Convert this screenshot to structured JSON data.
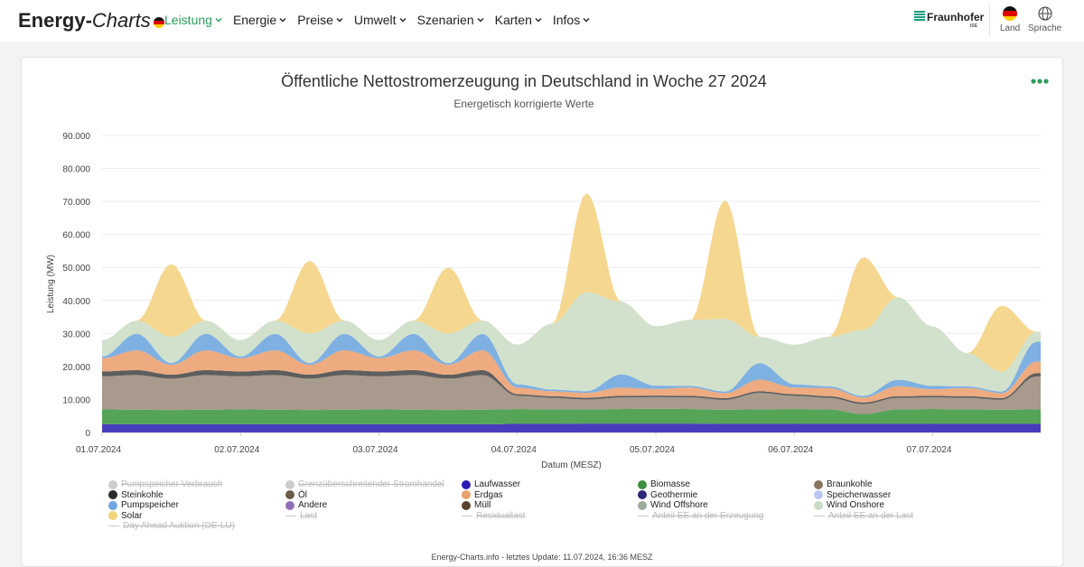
{
  "nav": {
    "brand_bold": "Energy-",
    "brand_italic": "Charts",
    "menu": [
      {
        "label": "Leistung",
        "active": true
      },
      {
        "label": "Energie",
        "active": false
      },
      {
        "label": "Preise",
        "active": false
      },
      {
        "label": "Umwelt",
        "active": false
      },
      {
        "label": "Szenarien",
        "active": false
      },
      {
        "label": "Karten",
        "active": false
      },
      {
        "label": "Infos",
        "active": false
      }
    ],
    "partner": "Fraunhofer",
    "partner_sub": "ISE",
    "land_label": "Land",
    "sprache_label": "Sprache"
  },
  "footer": "Energy-Charts.info - letztes Update: 11.07.2024, 16:36 MESZ",
  "chart_data": {
    "type": "area",
    "stacked": true,
    "title": "Öffentliche Nettostromerzeugung in Deutschland in Woche 27 2024",
    "subtitle": "Energetisch korrigierte Werte",
    "xlabel": "Datum (MESZ)",
    "ylabel": "Leistung (MW)",
    "ylim": [
      0,
      90000
    ],
    "yticks": [
      "0",
      "10.000",
      "20.000",
      "30.000",
      "40.000",
      "50.000",
      "60.000",
      "70.000",
      "80.000",
      "90.000"
    ],
    "xticks": [
      "01.07.2024",
      "02.07.2024",
      "03.07.2024",
      "04.07.2024",
      "05.07.2024",
      "06.07.2024",
      "07.07.2024"
    ],
    "grid": true,
    "x_days": [
      1.0,
      1.25,
      1.5,
      1.75,
      2.0,
      2.25,
      2.5,
      2.75,
      3.0,
      3.25,
      3.5,
      3.75,
      4.0,
      4.25,
      4.5,
      4.75,
      5.0,
      5.25,
      5.5,
      5.75,
      6.0,
      6.25,
      6.5,
      6.75,
      7.0,
      7.25,
      7.5,
      7.75
    ],
    "series": [
      {
        "name": "Laufwasser",
        "color": "#3f31b8",
        "values": [
          2500,
          2500,
          2500,
          2500,
          2500,
          2500,
          2500,
          2500,
          2500,
          2500,
          2500,
          2500,
          2600,
          2600,
          2700,
          2700,
          2700,
          2700,
          2600,
          2600,
          2600,
          2600,
          2600,
          2600,
          2600,
          2600,
          2600,
          2600
        ]
      },
      {
        "name": "Biomasse",
        "color": "#4d9f4f",
        "values": [
          4500,
          4400,
          4300,
          4400,
          4500,
          4400,
          4300,
          4400,
          4500,
          4400,
          4300,
          4400,
          4500,
          4400,
          4300,
          4400,
          4500,
          4400,
          4300,
          4400,
          4500,
          4400,
          3000,
          4400,
          4500,
          4400,
          4300,
          4400
        ]
      },
      {
        "name": "Braunkohle",
        "color": "#a39587",
        "values": [
          10000,
          10500,
          9500,
          10500,
          10000,
          10500,
          9500,
          10500,
          10000,
          10500,
          9500,
          10500,
          4000,
          3500,
          3000,
          3500,
          3500,
          3500,
          3000,
          5000,
          4000,
          3500,
          3000,
          3500,
          3500,
          3500,
          3000,
          10000
        ]
      },
      {
        "name": "Steinkohle",
        "color": "#555555",
        "values": [
          1500,
          1500,
          1200,
          1500,
          1500,
          1500,
          1200,
          1500,
          1500,
          1500,
          1200,
          1500,
          500,
          500,
          500,
          500,
          500,
          500,
          500,
          500,
          500,
          500,
          500,
          500,
          500,
          500,
          500,
          1000
        ]
      },
      {
        "name": "Erdgas",
        "color": "#eca678",
        "values": [
          4000,
          6000,
          3000,
          6000,
          4000,
          6000,
          3000,
          6000,
          4000,
          6000,
          3000,
          6000,
          2000,
          1500,
          1500,
          2500,
          2000,
          2500,
          1500,
          3500,
          2000,
          2500,
          1500,
          3000,
          2000,
          2500,
          1500,
          3500
        ]
      },
      {
        "name": "Pumpspeicher",
        "color": "#78ace0",
        "values": [
          500,
          5000,
          500,
          5000,
          500,
          5000,
          500,
          5000,
          500,
          5000,
          500,
          5000,
          1000,
          500,
          500,
          4000,
          1000,
          500,
          500,
          5000,
          1000,
          500,
          500,
          2000,
          1000,
          500,
          500,
          6000
        ]
      },
      {
        "name": "Wind Onshore",
        "color": "#cfdfc9",
        "values": [
          5000,
          4000,
          8000,
          4000,
          5000,
          4000,
          9000,
          4000,
          5000,
          4000,
          9000,
          4000,
          12000,
          20000,
          30000,
          22000,
          18000,
          20000,
          22000,
          8000,
          12000,
          15000,
          20000,
          25000,
          18000,
          10000,
          6000,
          3000
        ]
      },
      {
        "name": "Solar",
        "color": "#f4d58a",
        "values": [
          0,
          0,
          22000,
          0,
          0,
          0,
          22000,
          0,
          0,
          0,
          20000,
          0,
          0,
          0,
          30000,
          0,
          0,
          0,
          36000,
          0,
          0,
          0,
          22000,
          0,
          0,
          0,
          20000,
          0
        ]
      }
    ],
    "legend": [
      {
        "name": "Pumpspeicher Verbrauch",
        "color": "#cccccc",
        "kind": "dot",
        "off": true
      },
      {
        "name": "Grenzüberschreitender Stromhandel",
        "color": "#cccccc",
        "kind": "dot",
        "off": true
      },
      {
        "name": "Laufwasser",
        "color": "#2a1bb5",
        "kind": "dot",
        "off": false
      },
      {
        "name": "Biomasse",
        "color": "#3d8f3f",
        "kind": "dot",
        "off": false
      },
      {
        "name": "Braunkohle",
        "color": "#8a7560",
        "kind": "dot",
        "off": false
      },
      {
        "name": "Steinkohle",
        "color": "#2b2b2b",
        "kind": "dot",
        "off": false
      },
      {
        "name": "Öl",
        "color": "#6b5b4b",
        "kind": "dot",
        "off": false
      },
      {
        "name": "Erdgas",
        "color": "#e8a26a",
        "kind": "dot",
        "off": false
      },
      {
        "name": "Geothermie",
        "color": "#2b2576",
        "kind": "dot",
        "off": false
      },
      {
        "name": "Speicherwasser",
        "color": "#b9c6ef",
        "kind": "dot",
        "off": false
      },
      {
        "name": "Pumpspeicher",
        "color": "#6fa6df",
        "kind": "dot",
        "off": false
      },
      {
        "name": "Andere",
        "color": "#8f70b8",
        "kind": "dot",
        "off": false
      },
      {
        "name": "Müll",
        "color": "#5a4230",
        "kind": "dot",
        "off": false
      },
      {
        "name": "Wind Offshore",
        "color": "#9aab9a",
        "kind": "dot",
        "off": false
      },
      {
        "name": "Wind Onshore",
        "color": "#c8dcc2",
        "kind": "dot",
        "off": false
      },
      {
        "name": "Solar",
        "color": "#f1d37a",
        "kind": "dot",
        "off": false
      },
      {
        "name": "Last",
        "color": "#cccccc",
        "kind": "line",
        "off": true
      },
      {
        "name": "Residuallast",
        "color": "#cccccc",
        "kind": "line",
        "off": true
      },
      {
        "name": "Anteil EE an der Erzeugung",
        "color": "#cccccc",
        "kind": "line",
        "off": true
      },
      {
        "name": "Anteil EE an der Last",
        "color": "#cccccc",
        "kind": "line",
        "off": true
      },
      {
        "name": "Day Ahead Auktion (DE-LU)",
        "color": "#cccccc",
        "kind": "line",
        "off": true
      }
    ]
  }
}
